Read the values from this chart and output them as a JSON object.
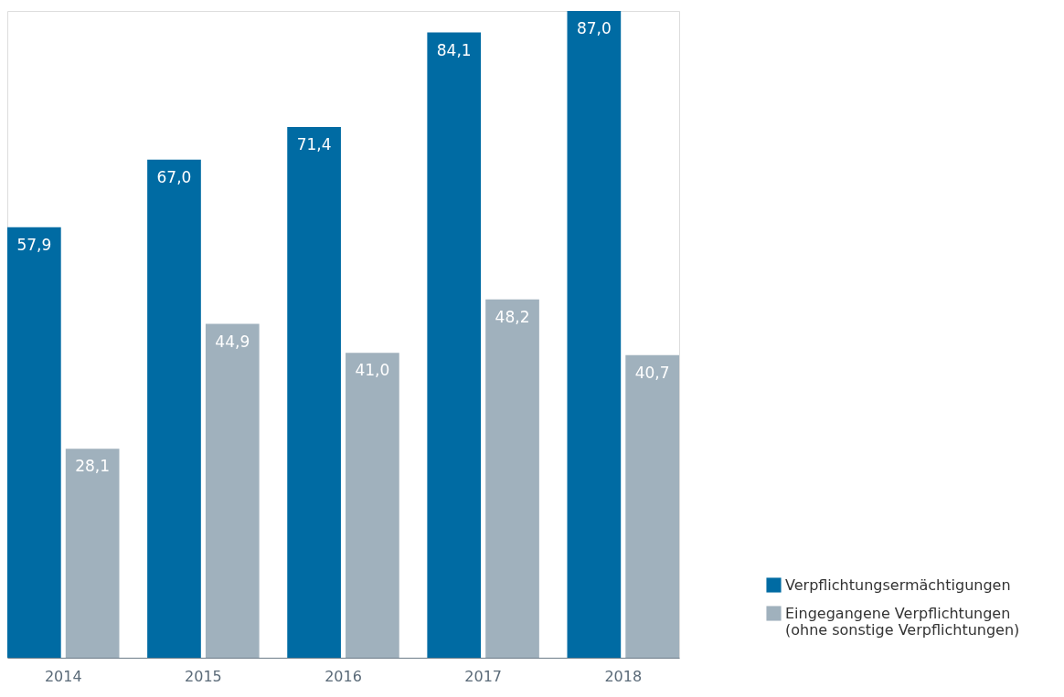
{
  "chart_data": {
    "type": "bar",
    "categories": [
      "2014",
      "2015",
      "2016",
      "2017",
      "2018"
    ],
    "series": [
      {
        "name": "Verpflichtungsermächtigungen",
        "color": "#006ba3",
        "values": [
          57.9,
          67.0,
          71.4,
          84.1,
          87.0
        ],
        "value_labels": [
          "57,9",
          "67,0",
          "71,4",
          "84,1",
          "87,0"
        ]
      },
      {
        "name": "Eingegangene Verpflichtungen (ohne sonstige Verpflichtungen)",
        "color": "#a0b1bd",
        "values": [
          28.1,
          44.9,
          41.0,
          48.2,
          40.7
        ],
        "value_labels": [
          "28,1",
          "44,9",
          "41,0",
          "48,2",
          "40,7"
        ]
      }
    ],
    "legend": "bottom right",
    "grid": false
  }
}
